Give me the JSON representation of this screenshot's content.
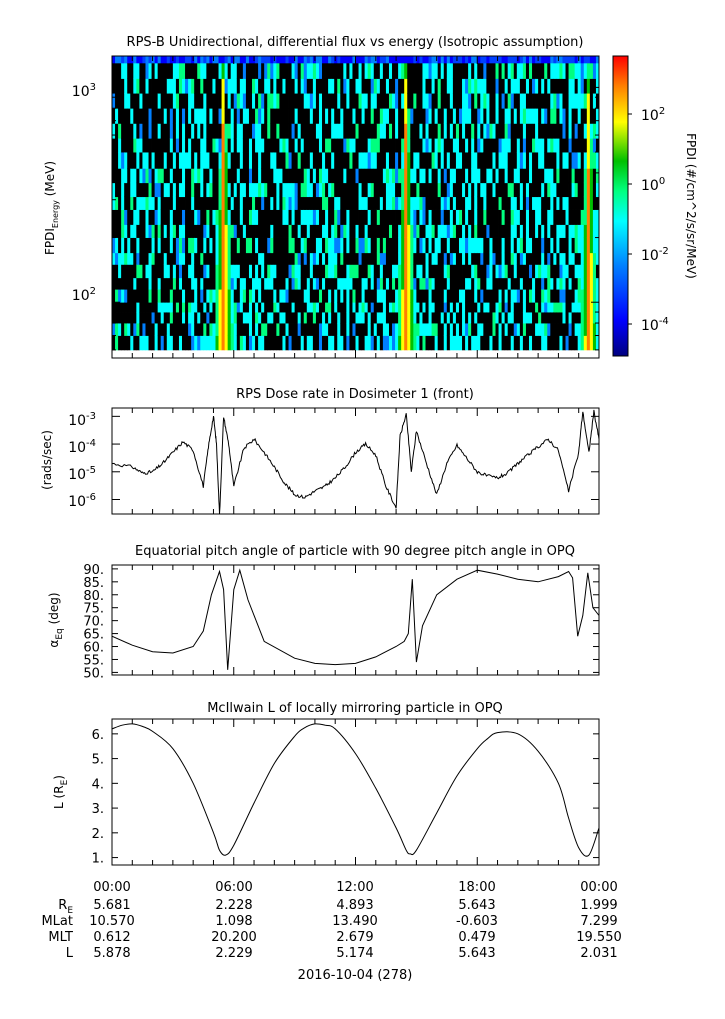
{
  "panels": [
    {
      "title": "RPS-B  Unidirectional, differential flux vs energy (Isotropic assumption)",
      "ylabel_main": "FPDI",
      "ylabel_sub": "Energy",
      "ylabel_unit": " (MeV)",
      "ytick_labels": [
        {
          "base": "10",
          "exp": "3",
          "value": 1000
        },
        {
          "base": "10",
          "exp": "2",
          "value": 100
        }
      ]
    },
    {
      "title": "RPS  Dose rate in Dosimeter 1 (front)",
      "ylabel": "(rads/sec)",
      "ytick_labels": [
        {
          "base": "10",
          "exp": "-3",
          "value": 0.001
        },
        {
          "base": "10",
          "exp": "-4",
          "value": 0.0001
        },
        {
          "base": "10",
          "exp": "-5",
          "value": 1e-05
        },
        {
          "base": "10",
          "exp": "-6",
          "value": 1e-06
        }
      ]
    },
    {
      "title": "Equatorial pitch angle of particle with 90 degree pitch angle in OPQ",
      "ylabel_main": "α",
      "ylabel_sub": "Eq",
      "ylabel_unit": " (deg)",
      "ytick_labels": [
        "90.",
        "85.",
        "80.",
        "75.",
        "70.",
        "65.",
        "60.",
        "55.",
        "50."
      ]
    },
    {
      "title": "McIlwain L of locally mirroring particle in OPQ",
      "ylabel_main": "L (R",
      "ylabel_sub": "E",
      "ylabel_close": ")",
      "ytick_labels": [
        "6.",
        "5.",
        "4.",
        "3.",
        "2.",
        "1."
      ]
    }
  ],
  "colorbar": {
    "label": "FPDI (#/cm^2/s/sr/MeV)",
    "tick_labels": [
      {
        "base": "10",
        "exp": "2",
        "value": 100
      },
      {
        "base": "10",
        "exp": "0",
        "value": 1
      },
      {
        "base": "10",
        "exp": "-2",
        "value": 0.01
      },
      {
        "base": "10",
        "exp": "-4",
        "value": 0.0001
      }
    ],
    "colors": [
      "#00007f",
      "#0000ff",
      "#007fff",
      "#00ffff",
      "#00ff7f",
      "#00c000",
      "#ffff00",
      "#ff7f00",
      "#ff0000"
    ]
  },
  "time_axis": {
    "tick_labels": [
      "00:00",
      "06:00",
      "12:00",
      "18:00",
      "00:00"
    ],
    "date_label": "2016-10-04 (278)"
  },
  "ephemeris": {
    "rows": [
      {
        "label_main": "R",
        "label_sub": "E",
        "values": [
          "5.681",
          "2.228",
          "4.893",
          "5.643",
          "1.999"
        ]
      },
      {
        "label_main": "MLat",
        "label_sub": "",
        "values": [
          "10.570",
          "1.098",
          "13.490",
          "-0.603",
          "7.299"
        ]
      },
      {
        "label_main": "MLT",
        "label_sub": "",
        "values": [
          "0.612",
          "20.200",
          "2.679",
          "0.479",
          "19.550"
        ]
      },
      {
        "label_main": "L",
        "label_sub": "",
        "values": [
          "5.878",
          "2.229",
          "5.174",
          "5.643",
          "2.031"
        ]
      }
    ]
  },
  "chart_data": [
    {
      "type": "heatmap",
      "title": "RPS-B  Unidirectional, differential flux vs energy (Isotropic assumption)",
      "xlabel": "",
      "ylabel": "FPDI Energy (MeV)",
      "xlim": [
        "2016-10-04 00:00",
        "2016-10-05 00:00"
      ],
      "ylim": [
        55,
        1400
      ],
      "yscale": "log",
      "energy_channels_mev": [
        60,
        70,
        80,
        90,
        100,
        115,
        130,
        150,
        170,
        200,
        230,
        270,
        310,
        360,
        420,
        500,
        580,
        680,
        800,
        940,
        1100,
        1300
      ],
      "flux_peaks": [
        {
          "time": "2016-10-04 05:30",
          "max_flux": 100
        },
        {
          "time": "2016-10-04 14:30",
          "max_flux": 100
        },
        {
          "time": "2016-10-04 23:30",
          "max_flux": 50
        }
      ],
      "background_flux": 0.003,
      "colorbar_range": [
        1e-05,
        1000
      ]
    },
    {
      "type": "line",
      "title": "RPS  Dose rate in Dosimeter 1 (front)",
      "ylabel": "(rads/sec)",
      "yscale": "log",
      "ylim": [
        3e-07,
        0.002
      ],
      "x_hours": [
        0,
        1,
        1.5,
        2,
        2.5,
        3,
        3.5,
        4,
        4.5,
        4.75,
        5,
        5.15,
        5.3,
        5.5,
        5.75,
        6,
        6.5,
        7,
        7.5,
        8,
        8.5,
        9,
        9.5,
        10,
        10.5,
        11,
        11.5,
        12,
        12.5,
        13,
        13.5,
        14,
        14.2,
        14.5,
        14.75,
        15,
        15.5,
        16,
        16.5,
        17,
        17.5,
        18,
        18.5,
        19,
        19.5,
        20,
        20.5,
        21,
        21.5,
        22,
        22.5,
        23,
        23.2,
        23.5,
        23.75,
        24
      ],
      "y": [
        2e-05,
        1.5e-05,
        9e-06,
        1e-05,
        2e-05,
        5e-05,
        0.00012,
        6e-05,
        3e-06,
        8e-05,
        0.001,
        0.0001,
        3e-07,
        0.001,
        0.0001,
        3e-06,
        7e-05,
        0.00015,
        5e-05,
        1.5e-05,
        4e-06,
        1.5e-06,
        1.2e-06,
        2e-06,
        3e-06,
        6e-06,
        1.5e-05,
        5e-05,
        0.0001,
        4e-05,
        3e-06,
        5e-07,
        0.0002,
        0.0012,
        1e-05,
        0.0003,
        2e-05,
        1.5e-06,
        2e-05,
        9e-05,
        3e-05,
        1e-05,
        7e-06,
        6e-06,
        9e-06,
        2e-05,
        4e-05,
        8e-05,
        0.00015,
        6e-05,
        2e-06,
        5e-05,
        0.0015,
        5e-05,
        0.0015,
        0.00015
      ]
    },
    {
      "type": "line",
      "title": "Equatorial pitch angle of particle with 90 degree pitch angle in OPQ",
      "ylabel": "αEq (deg)",
      "ylim": [
        49,
        91.5
      ],
      "x_hours": [
        0,
        1,
        2,
        3,
        4,
        4.5,
        4.9,
        5.3,
        5.5,
        5.7,
        6,
        6.3,
        6.7,
        7.5,
        9,
        10,
        11,
        12,
        13,
        14,
        14.4,
        14.6,
        14.8,
        15,
        15.3,
        16,
        17,
        18,
        19,
        20,
        21,
        22,
        22.5,
        22.7,
        22.95,
        23.2,
        23.45,
        23.7,
        24
      ],
      "y": [
        64,
        60.5,
        58,
        57.5,
        60,
        66,
        80,
        89,
        82,
        51,
        82,
        89.5,
        78,
        62,
        55.5,
        53.5,
        53,
        53.5,
        56,
        60,
        62,
        65,
        86,
        54,
        68,
        80,
        86,
        89.5,
        88,
        86,
        85,
        87,
        89,
        86.5,
        64,
        72,
        88.5,
        75,
        72
      ]
    },
    {
      "type": "line",
      "title": "McIlwain L of locally mirroring particle in OPQ",
      "ylabel": "L (RE)",
      "ylim": [
        0.7,
        6.6
      ],
      "x_hours": [
        0,
        0.5,
        1,
        1.5,
        2,
        3,
        4,
        5,
        5.3,
        5.6,
        6,
        7,
        8,
        9,
        9.5,
        10,
        10.5,
        11,
        12,
        13,
        14,
        14.5,
        14.7,
        15,
        16,
        17,
        18,
        18.5,
        19,
        20,
        21,
        22,
        22.5,
        23,
        23.5,
        24
      ],
      "y": [
        6.2,
        6.35,
        6.4,
        6.3,
        6.1,
        5.4,
        4.0,
        2.0,
        1.3,
        1.1,
        1.5,
        3.2,
        4.8,
        5.9,
        6.25,
        6.4,
        6.35,
        6.2,
        5.2,
        3.8,
        2.2,
        1.3,
        1.15,
        1.3,
        2.8,
        4.3,
        5.4,
        5.8,
        6.05,
        6.0,
        5.3,
        4.0,
        2.6,
        1.4,
        1.1,
        2.2
      ]
    }
  ]
}
